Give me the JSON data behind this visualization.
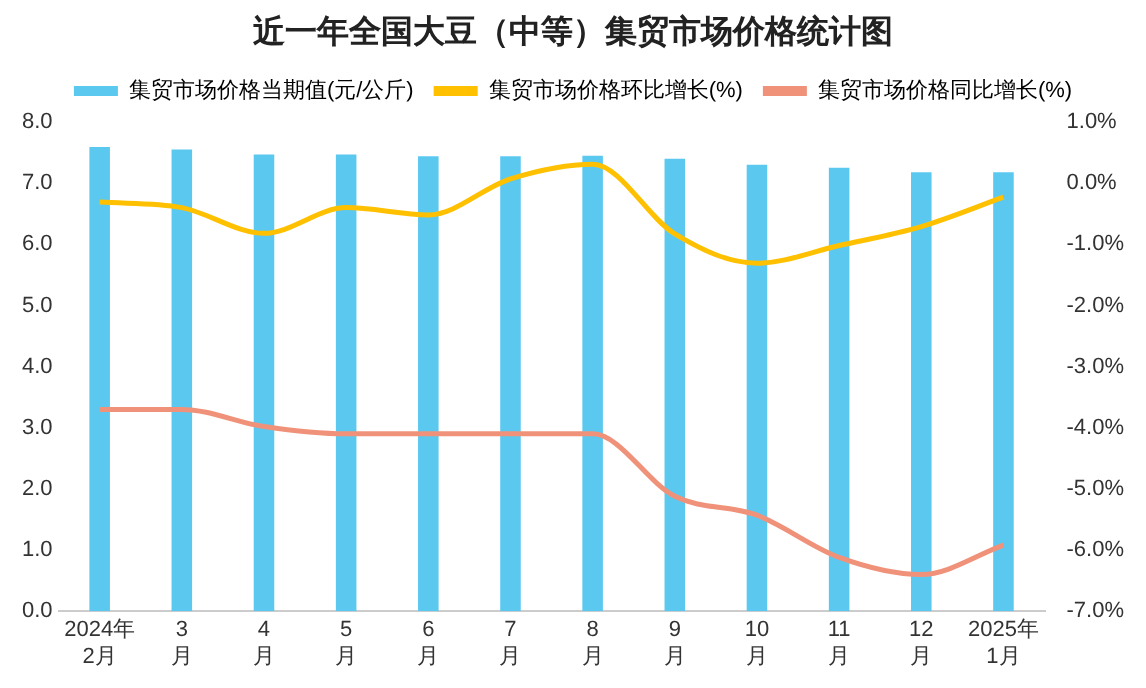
{
  "chart_data": {
    "type": "bar",
    "title": "近一年全国大豆（中等）集贸市场价格统计图",
    "categories": [
      "2024年\n2月",
      "3\n月",
      "4\n月",
      "5\n月",
      "6\n月",
      "7\n月",
      "8\n月",
      "9\n月",
      "10\n月",
      "11\n月",
      "12\n月",
      "2025年\n1月"
    ],
    "series": [
      {
        "name": "集贸市场价格当期值(元/公斤)",
        "color": "#5bc8f0",
        "values": [
          7.59,
          7.55,
          7.47,
          7.47,
          7.44,
          7.44,
          7.45,
          7.4,
          7.3,
          7.25,
          7.18,
          7.18
        ]
      },
      {
        "name": "集贸市场价格环比增长(%)",
        "type": "line",
        "axis": "y2",
        "color": "#ffc000",
        "values": [
          -0.31,
          -0.4,
          -0.82,
          -0.4,
          -0.52,
          0.07,
          0.31,
          -0.83,
          -1.31,
          -1.02,
          -0.71,
          -0.23
        ]
      },
      {
        "name": "集贸市场价格同比增长(%)",
        "type": "line",
        "axis": "y2",
        "color": "#f0927a",
        "values": [
          -3.7,
          -3.7,
          -3.98,
          -4.1,
          -4.1,
          -4.1,
          -4.1,
          -5.12,
          -5.43,
          -6.12,
          -6.4,
          -5.92
        ]
      }
    ],
    "ylim": [
      0,
      8
    ],
    "yticks": [
      {
        "value": 0,
        "label": "0.0"
      },
      {
        "value": 1,
        "label": "1.0"
      },
      {
        "value": 2,
        "label": "2.0"
      },
      {
        "value": 3,
        "label": "3.0"
      },
      {
        "value": 4,
        "label": "4.0"
      },
      {
        "value": 5,
        "label": "5.0"
      },
      {
        "value": 6,
        "label": "6.0"
      },
      {
        "value": 7,
        "label": "7.0"
      },
      {
        "value": 8,
        "label": "8.0"
      }
    ],
    "y2lim": [
      -7,
      1
    ],
    "y2ticks": [
      {
        "value": -7,
        "label": "-7.0%"
      },
      {
        "value": -6,
        "label": "-6.0%"
      },
      {
        "value": -5,
        "label": "-5.0%"
      },
      {
        "value": -4,
        "label": "-4.0%"
      },
      {
        "value": -3,
        "label": "-3.0%"
      },
      {
        "value": -2,
        "label": "-2.0%"
      },
      {
        "value": -1,
        "label": "-1.0%"
      },
      {
        "value": 0,
        "label": "0.0%"
      },
      {
        "value": 1,
        "label": "1.0%"
      }
    ],
    "grid": false,
    "legend": "top",
    "marker": "none"
  }
}
